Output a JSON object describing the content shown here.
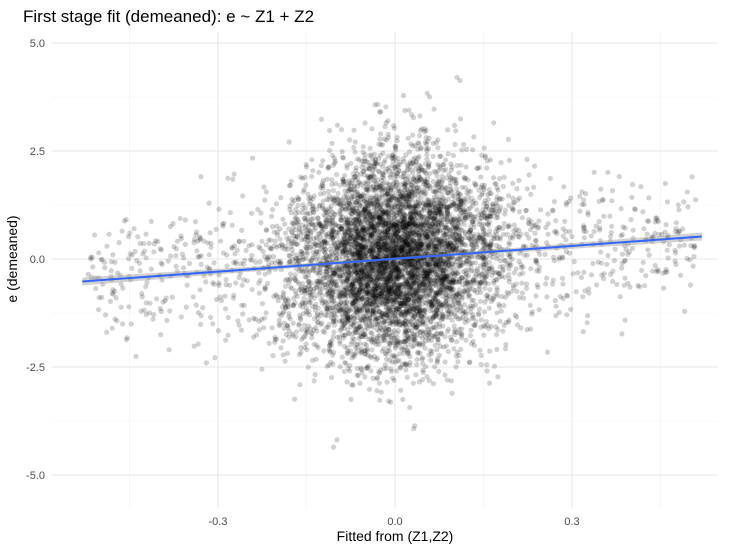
{
  "chart_data": {
    "type": "scatter",
    "title": "First stage fit (demeaned): e ~ Z1 + Z2",
    "xlabel": "Fitted from (Z1,Z2)",
    "ylabel": "e (demeaned)",
    "xlim": [
      -0.545,
      0.545
    ],
    "ylim": [
      -5.6,
      5.35
    ],
    "x_ticks": [
      -0.3,
      0.0,
      0.3
    ],
    "x_tick_labels": [
      "-0.3",
      "0.0",
      "0.3"
    ],
    "y_ticks": [
      -5.0,
      -2.5,
      0.0,
      2.5,
      5.0
    ],
    "y_tick_labels": [
      "-5.0",
      "-2.5",
      "0.0",
      "2.5",
      "5.0"
    ],
    "grid": true,
    "legend": "none",
    "point_color": "#000000",
    "point_opacity": 0.18,
    "points_sampled": true,
    "fit_line": {
      "method": "linear",
      "color": "#3366ff",
      "ribbon_color": "#999999",
      "x": [
        -0.53,
        0.52
      ],
      "y": [
        -0.52,
        0.52
      ]
    }
  }
}
